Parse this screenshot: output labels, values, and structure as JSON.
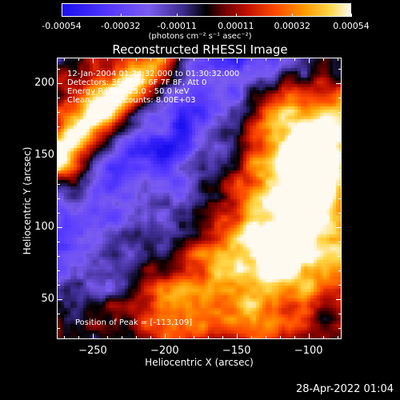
{
  "colorbar": {
    "tick_labels": [
      "-0.00054",
      "-0.00032",
      "-0.00011",
      "0.00011",
      "0.00032",
      "0.00054"
    ],
    "units": "(photons cm⁻² s⁻¹ asec⁻²)",
    "colors": [
      "#1b0ff0",
      "#7a5cf0",
      "#000000",
      "#c01000",
      "#ff9a00",
      "#fffaf0"
    ],
    "range": [
      -0.00054,
      0.00054
    ]
  },
  "chart_data": {
    "type": "heatmap",
    "title": "Reconstructed RHESSI Image",
    "xlabel": "Heliocentric X (arcsec)",
    "ylabel": "Heliocentric Y (arcsec)",
    "xlim": [
      -275,
      -77
    ],
    "ylim": [
      22,
      218
    ],
    "x_ticks": [
      -250,
      -200,
      -150,
      -100
    ],
    "y_ticks": [
      50,
      100,
      150,
      200
    ],
    "peak_position": [
      -113,
      109
    ],
    "annotations": [
      "12-Jan-2004 01:24:32.000 to 01:30:32.000",
      "Detectors: 3F 4F 5F 6F 7F 8F, Att 0",
      "Energy Range: 25.0 - 50.0 keV",
      "Clean     Total counts: 8.00E+03"
    ],
    "peak_label": "Position of Peak = [-113,109]"
  },
  "footer": {
    "timestamp": "28-Apr-2022 01:04"
  }
}
